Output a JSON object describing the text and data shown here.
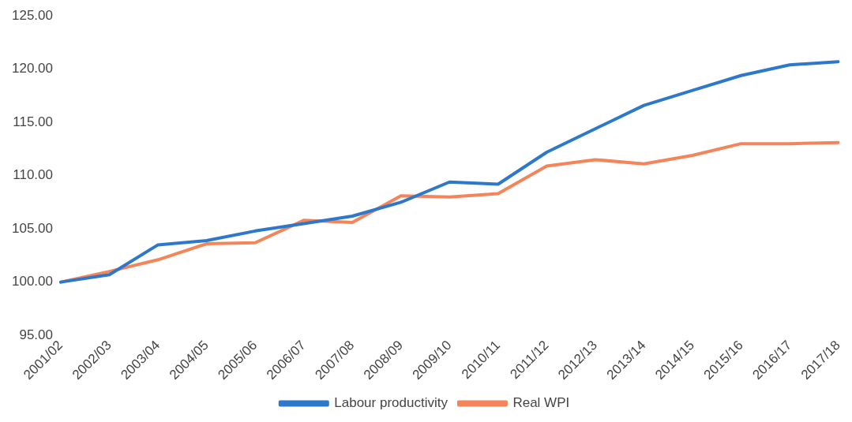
{
  "chart_data": {
    "type": "line",
    "categories": [
      "2001/02",
      "2002/03",
      "2003/04",
      "2004/05",
      "2005/06",
      "2006/07",
      "2007/08",
      "2008/09",
      "2009/10",
      "2010/11",
      "2011/12",
      "2012/13",
      "2013/14",
      "2014/15",
      "2015/16",
      "2016/17",
      "2017/18"
    ],
    "series": [
      {
        "name": "Labour productivity",
        "color": "#2e78cc",
        "values": [
          100.0,
          100.7,
          103.5,
          103.9,
          104.8,
          105.5,
          106.2,
          107.5,
          109.4,
          109.2,
          112.2,
          114.4,
          116.6,
          118.0,
          119.4,
          120.4,
          120.7
        ]
      },
      {
        "name": "Real WPI",
        "color": "#f4845a",
        "values": [
          100.0,
          101.0,
          102.1,
          103.6,
          103.7,
          105.8,
          105.6,
          108.1,
          108.0,
          108.3,
          110.9,
          111.5,
          111.1,
          111.9,
          113.0,
          113.0,
          113.1
        ]
      }
    ],
    "ylim": [
      95,
      125
    ],
    "yticks": [
      {
        "value": 95,
        "label": "95.00"
      },
      {
        "value": 100,
        "label": "100.00"
      },
      {
        "value": 105,
        "label": "105.00"
      },
      {
        "value": 110,
        "label": "110.00"
      },
      {
        "value": 115,
        "label": "115.00"
      },
      {
        "value": 120,
        "label": "120.00"
      },
      {
        "value": 125,
        "label": "125.00"
      }
    ],
    "grid": false,
    "legend": "bottom",
    "marker": "none",
    "line_style": "solid"
  }
}
